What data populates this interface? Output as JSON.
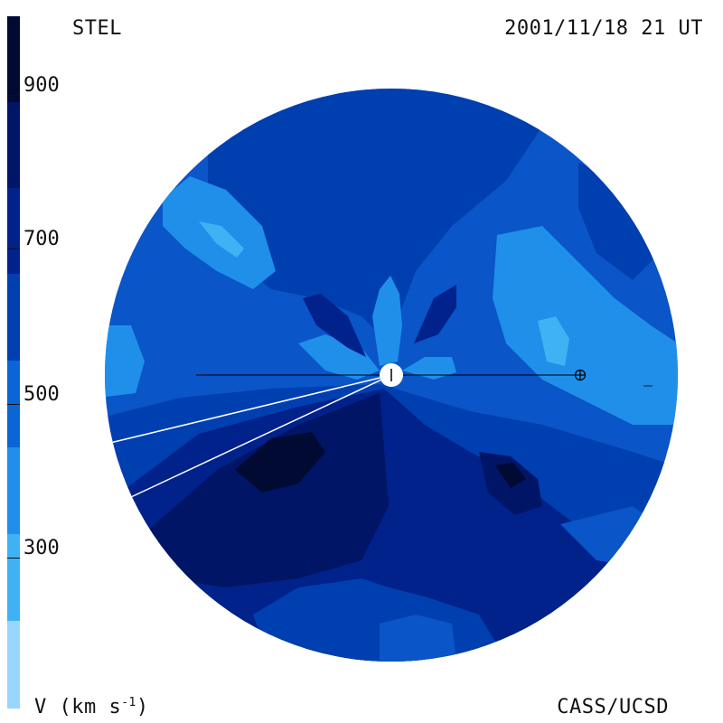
{
  "header": {
    "source": "STEL",
    "timestamp": "2001/11/18 21 UT"
  },
  "footer": {
    "units_prefix": "V (km s",
    "units_exp": "-1",
    "units_suffix": ")",
    "credit": "CASS/UCSD"
  },
  "colorbar": {
    "ticks": [
      "900",
      "700",
      "500",
      "300"
    ],
    "colors": [
      "#99d6ff",
      "#3fb2f4",
      "#1f8fea",
      "#0a66d6",
      "#003fb0",
      "#00228a",
      "#001566",
      "#000a33"
    ]
  },
  "map": {
    "background_color": "#0a55c8",
    "sun_symbol": "sun-icon",
    "earth_symbol": "earth-icon"
  }
}
